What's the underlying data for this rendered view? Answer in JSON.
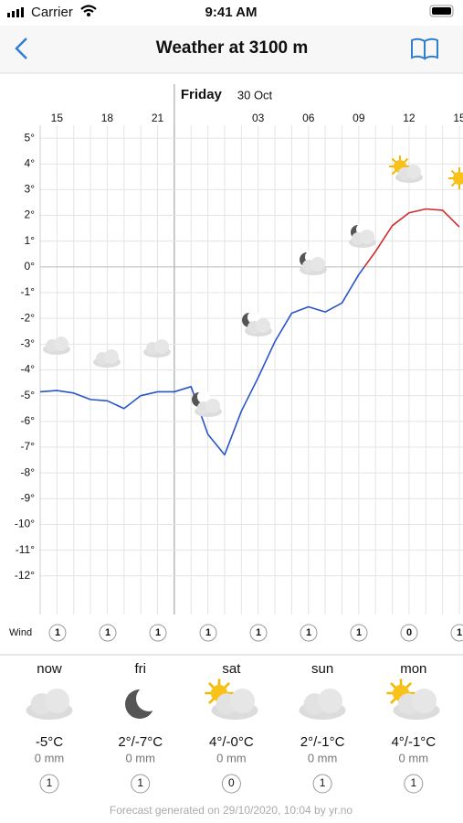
{
  "status_bar": {
    "carrier": "Carrier",
    "time": "9:41 AM"
  },
  "nav": {
    "title": "Weather at 3100 m"
  },
  "chart_data": {
    "type": "line",
    "day_label": "Friday",
    "date_label": "30 Oct",
    "categories": [
      null,
      "15",
      null,
      null,
      "18",
      null,
      null,
      "21",
      null,
      null,
      null,
      null,
      null,
      "03",
      null,
      null,
      "06",
      null,
      null,
      "09",
      null,
      null,
      "12",
      null,
      null,
      "15"
    ],
    "series": [
      {
        "name": "Temperature",
        "values": [
          -4.85,
          -4.8,
          -4.9,
          -5.15,
          -5.2,
          -5.5,
          -5.0,
          -4.85,
          -4.85,
          -4.65,
          -6.5,
          -7.3,
          -5.6,
          -4.3,
          -2.9,
          -1.8,
          -1.55,
          -1.75,
          -1.4,
          -0.3,
          0.6,
          1.6,
          2.1,
          2.25,
          2.2,
          1.55
        ]
      }
    ],
    "colors": {
      "above_zero": "#d12b2b",
      "below_zero": "#2a55c8"
    },
    "ylim": [
      -13.5,
      5.5
    ],
    "yticks": [
      {
        "value": 5,
        "label": "5°"
      },
      {
        "value": 4,
        "label": "4°"
      },
      {
        "value": 3,
        "label": "3°"
      },
      {
        "value": 2,
        "label": "2°"
      },
      {
        "value": 1,
        "label": "1°"
      },
      {
        "value": 0,
        "label": "0°"
      },
      {
        "value": -1,
        "label": "-1°"
      },
      {
        "value": -2,
        "label": "-2°"
      },
      {
        "value": -3,
        "label": "-3°"
      },
      {
        "value": -4,
        "label": "-4°"
      },
      {
        "value": -5,
        "label": "-5°"
      },
      {
        "value": -6,
        "label": "-6°"
      },
      {
        "value": -7,
        "label": "-7°"
      },
      {
        "value": -8,
        "label": "-8°"
      },
      {
        "value": -9,
        "label": "-9°"
      },
      {
        "value": -10,
        "label": "-10°"
      },
      {
        "value": -11,
        "label": "-11°"
      },
      {
        "value": -12,
        "label": "-12°"
      }
    ],
    "grid": true,
    "wind": {
      "label": "Wind",
      "values": [
        1,
        1,
        1,
        1,
        1,
        1,
        1,
        0,
        1
      ]
    }
  },
  "days": [
    {
      "name": "now",
      "temp": "-5°C",
      "precip": "0 mm",
      "wind": 1
    },
    {
      "name": "fri",
      "temp": "2°/-7°C",
      "precip": "0 mm",
      "wind": 1
    },
    {
      "name": "sat",
      "temp": "4°/-0°C",
      "precip": "0 mm",
      "wind": 0
    },
    {
      "name": "sun",
      "temp": "2°/-1°C",
      "precip": "0 mm",
      "wind": 1
    },
    {
      "name": "mon",
      "temp": "4°/-1°C",
      "precip": "0 mm",
      "wind": 1
    }
  ],
  "footer": "Forecast generated on 29/10/2020, 10:04 by yr.no"
}
